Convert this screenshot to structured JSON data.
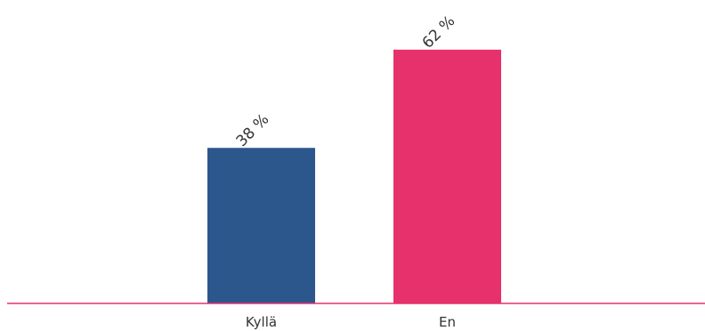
{
  "chart_data": {
    "type": "bar",
    "categories": [
      "Kyllä",
      "En"
    ],
    "values": [
      38,
      62
    ],
    "value_labels": [
      "38 %",
      "62 %"
    ],
    "colors": [
      "#2c578c",
      "#e6316c"
    ],
    "axis_color": "#e6316c",
    "ylim": [
      0,
      100
    ],
    "title": "",
    "xlabel": "",
    "ylabel": "",
    "grid": false,
    "legend": "none"
  }
}
